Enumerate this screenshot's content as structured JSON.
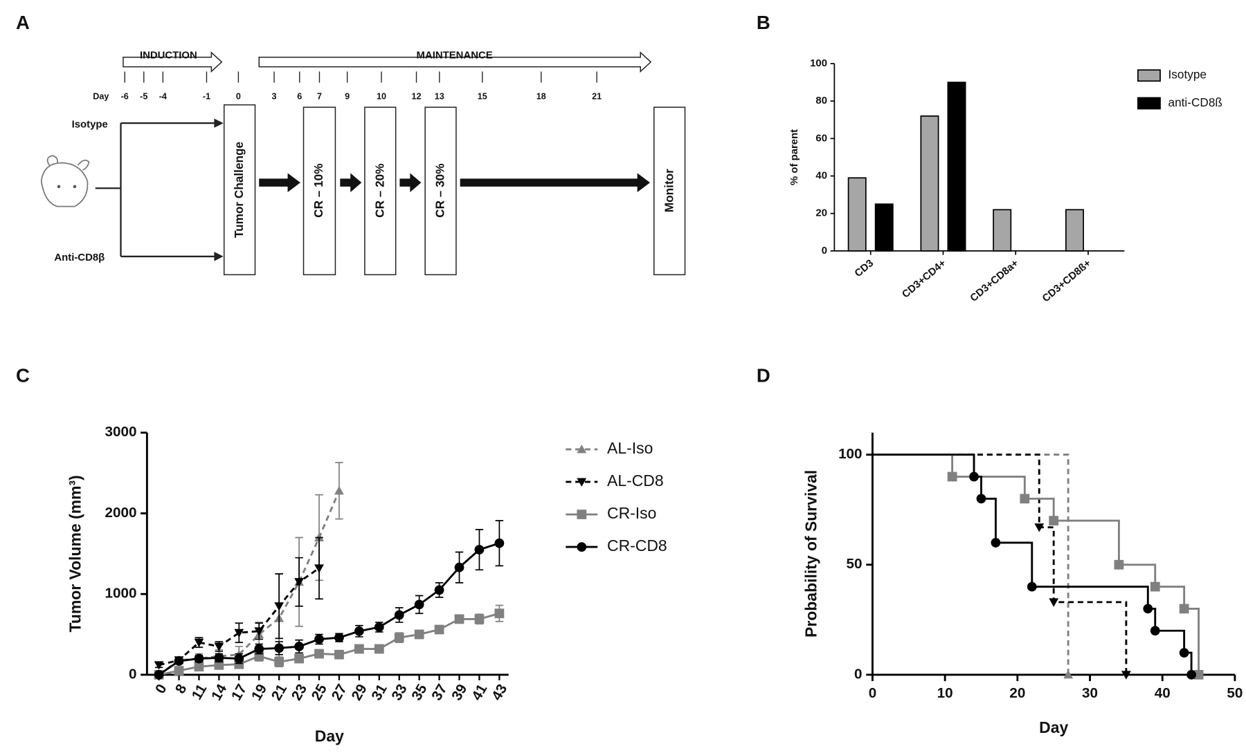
{
  "panel_labels": [
    "A",
    "B",
    "C",
    "D"
  ],
  "diagram": {
    "phases": [
      "INDUCTION",
      "MAINTENANCE"
    ],
    "day_label": "Day",
    "days": [
      -6,
      -5,
      -4,
      -1,
      0,
      3,
      6,
      7,
      9,
      10,
      12,
      13,
      15,
      18,
      21
    ],
    "groups": [
      "Isotype",
      "Anti-CD8β"
    ],
    "boxes": [
      "Tumor Challenge",
      "CR – 10%",
      "CR – 20%",
      "CR – 30%",
      "Monitor"
    ]
  },
  "chart_data": [
    {
      "type": "bar",
      "ylabel": "% of parent",
      "categories": [
        "CD3",
        "CD3+CD4+",
        "CD3+CD8a+",
        "CD3+CD8ß+"
      ],
      "series": [
        {
          "name": "Isotype",
          "color": "#a6a6a6",
          "values": [
            39,
            72,
            22,
            22
          ]
        },
        {
          "name": "anti-CD8ß",
          "color": "#000000",
          "values": [
            25,
            90,
            0,
            0
          ]
        }
      ],
      "ylim": [
        0,
        100
      ],
      "yticks": [
        0,
        20,
        40,
        60,
        80,
        100
      ],
      "legend": "right"
    },
    {
      "type": "line",
      "xlabel": "Day",
      "ylabel": "Tumor Volume (mm³)",
      "categories": [
        "0",
        "8",
        "11",
        "14",
        "17",
        "19",
        "21",
        "23",
        "25",
        "27",
        "29",
        "31",
        "33",
        "35",
        "37",
        "39",
        "41",
        "43"
      ],
      "series": [
        {
          "name": "AL-Iso",
          "color": "#808080",
          "marker": "triangle",
          "dashed": true,
          "values": [
            0,
            180,
            200,
            230,
            250,
            500,
            700,
            1150,
            1700,
            2280,
            null,
            null,
            null,
            null,
            null,
            null,
            null,
            null
          ],
          "errors": [
            0,
            40,
            60,
            80,
            100,
            150,
            550,
            550,
            530,
            350,
            null,
            null,
            null,
            null,
            null,
            null,
            null,
            null
          ]
        },
        {
          "name": "AL-CD8",
          "color": "#000000",
          "marker": "triangle-down",
          "dashed": true,
          "values": [
            120,
            180,
            400,
            350,
            520,
            540,
            850,
            1150,
            1320,
            null,
            null,
            null,
            null,
            null,
            null,
            null,
            null,
            null
          ],
          "errors": [
            30,
            40,
            60,
            60,
            120,
            100,
            400,
            300,
            380,
            null,
            null,
            null,
            null,
            null,
            null,
            null,
            null,
            null
          ]
        },
        {
          "name": "CR-Iso",
          "color": "#808080",
          "marker": "square",
          "dashed": false,
          "values": [
            0,
            50,
            100,
            120,
            130,
            230,
            160,
            200,
            260,
            250,
            320,
            320,
            460,
            500,
            560,
            690,
            690,
            760
          ],
          "errors": [
            0,
            20,
            40,
            40,
            50,
            60,
            60,
            50,
            50,
            40,
            50,
            50,
            60,
            50,
            40,
            50,
            60,
            100
          ]
        },
        {
          "name": "CR-CD8",
          "color": "#000000",
          "marker": "circle",
          "dashed": false,
          "values": [
            0,
            170,
            200,
            210,
            200,
            320,
            330,
            350,
            440,
            460,
            540,
            590,
            740,
            870,
            1050,
            1330,
            1550,
            1630
          ],
          "errors": [
            0,
            30,
            40,
            50,
            60,
            60,
            80,
            80,
            60,
            50,
            70,
            60,
            90,
            110,
            90,
            190,
            250,
            280
          ]
        }
      ],
      "ylim": [
        0,
        3000
      ],
      "yticks": [
        0,
        1000,
        2000,
        3000
      ],
      "legend": "right"
    },
    {
      "type": "step",
      "xlabel": "Day",
      "ylabel": "Probability of Survival",
      "series": [
        {
          "color": "#808080",
          "marker": "triangle",
          "dashed": true,
          "x": [
            0,
            27
          ],
          "values": [
            100,
            0
          ]
        },
        {
          "color": "#000000",
          "marker": "triangle-down",
          "dashed": true,
          "x": [
            0,
            23,
            25,
            35
          ],
          "values": [
            100,
            67,
            33,
            0
          ]
        },
        {
          "color": "#808080",
          "marker": "square",
          "dashed": false,
          "x": [
            0,
            11,
            21,
            25,
            34,
            39,
            43,
            45
          ],
          "values": [
            100,
            90,
            80,
            70,
            50,
            40,
            30,
            0
          ]
        },
        {
          "color": "#000000",
          "marker": "circle",
          "dashed": false,
          "x": [
            0,
            14,
            15,
            17,
            22,
            38,
            39,
            43,
            44
          ],
          "values": [
            100,
            90,
            80,
            60,
            40,
            30,
            20,
            10,
            0
          ]
        }
      ],
      "xlim": [
        0,
        50
      ],
      "xticks": [
        0,
        10,
        20,
        30,
        40,
        50
      ],
      "ylim": [
        0,
        110
      ],
      "yticks": [
        0,
        50,
        100
      ]
    }
  ]
}
